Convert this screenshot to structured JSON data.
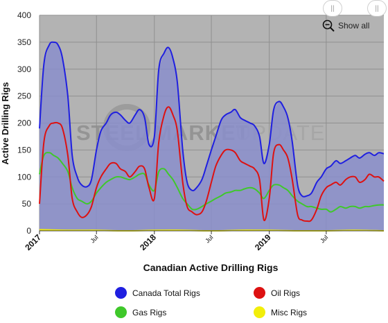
{
  "chart_data": {
    "type": "area",
    "title": "",
    "xlabel": "Canadian Active Drilling Rigs",
    "ylabel": "Active Drilling Rigs",
    "ylim": [
      0,
      400
    ],
    "yticks": [
      0,
      50,
      100,
      150,
      200,
      250,
      300,
      350,
      400
    ],
    "xlim": [
      "2017-01-01",
      "2019-12-31"
    ],
    "xticks": [
      {
        "date": "2017-01-01",
        "label": "2017",
        "major": true
      },
      {
        "date": "2017-07-01",
        "label": "Jul",
        "major": false
      },
      {
        "date": "2018-01-01",
        "label": "2018",
        "major": true
      },
      {
        "date": "2018-07-01",
        "label": "Jul",
        "major": false
      },
      {
        "date": "2019-01-01",
        "label": "2019",
        "major": true
      },
      {
        "date": "2019-07-01",
        "label": "Jul",
        "major": false
      }
    ],
    "grid": true,
    "legend_position": "bottom",
    "watermark": "STEEL MARKET UPDATE",
    "series": [
      {
        "name": "Canada Total Rigs",
        "color": "#1f1fe0",
        "fill": "#8a8ecb",
        "points": [
          [
            "2017-01-01",
            190
          ],
          [
            "2017-01-15",
            310
          ],
          [
            "2017-02-01",
            345
          ],
          [
            "2017-02-15",
            350
          ],
          [
            "2017-03-01",
            345
          ],
          [
            "2017-03-15",
            320
          ],
          [
            "2017-04-01",
            250
          ],
          [
            "2017-04-15",
            140
          ],
          [
            "2017-05-01",
            100
          ],
          [
            "2017-05-15",
            85
          ],
          [
            "2017-06-01",
            82
          ],
          [
            "2017-06-15",
            95
          ],
          [
            "2017-07-01",
            150
          ],
          [
            "2017-07-15",
            185
          ],
          [
            "2017-08-01",
            200
          ],
          [
            "2017-08-15",
            215
          ],
          [
            "2017-09-01",
            220
          ],
          [
            "2017-09-15",
            215
          ],
          [
            "2017-10-01",
            205
          ],
          [
            "2017-10-15",
            200
          ],
          [
            "2017-11-01",
            215
          ],
          [
            "2017-11-15",
            225
          ],
          [
            "2017-12-01",
            210
          ],
          [
            "2017-12-15",
            160
          ],
          [
            "2018-01-01",
            175
          ],
          [
            "2018-01-15",
            300
          ],
          [
            "2018-02-01",
            330
          ],
          [
            "2018-02-15",
            340
          ],
          [
            "2018-03-01",
            320
          ],
          [
            "2018-03-15",
            275
          ],
          [
            "2018-04-01",
            150
          ],
          [
            "2018-04-15",
            90
          ],
          [
            "2018-05-01",
            75
          ],
          [
            "2018-05-15",
            80
          ],
          [
            "2018-06-01",
            95
          ],
          [
            "2018-06-15",
            120
          ],
          [
            "2018-07-01",
            150
          ],
          [
            "2018-07-15",
            175
          ],
          [
            "2018-08-01",
            205
          ],
          [
            "2018-08-15",
            215
          ],
          [
            "2018-09-01",
            220
          ],
          [
            "2018-09-15",
            225
          ],
          [
            "2018-10-01",
            210
          ],
          [
            "2018-10-15",
            205
          ],
          [
            "2018-11-01",
            200
          ],
          [
            "2018-11-15",
            195
          ],
          [
            "2018-12-01",
            175
          ],
          [
            "2018-12-15",
            125
          ],
          [
            "2019-01-01",
            160
          ],
          [
            "2019-01-15",
            225
          ],
          [
            "2019-02-01",
            240
          ],
          [
            "2019-02-15",
            230
          ],
          [
            "2019-03-01",
            210
          ],
          [
            "2019-03-15",
            165
          ],
          [
            "2019-04-01",
            85
          ],
          [
            "2019-04-15",
            65
          ],
          [
            "2019-05-01",
            65
          ],
          [
            "2019-05-15",
            70
          ],
          [
            "2019-06-01",
            90
          ],
          [
            "2019-06-15",
            100
          ],
          [
            "2019-07-01",
            115
          ],
          [
            "2019-07-15",
            120
          ],
          [
            "2019-08-01",
            130
          ],
          [
            "2019-08-15",
            125
          ],
          [
            "2019-09-01",
            130
          ],
          [
            "2019-09-15",
            135
          ],
          [
            "2019-10-01",
            140
          ],
          [
            "2019-10-15",
            135
          ],
          [
            "2019-11-01",
            142
          ],
          [
            "2019-11-15",
            145
          ],
          [
            "2019-12-01",
            140
          ],
          [
            "2019-12-15",
            145
          ],
          [
            "2019-12-31",
            143
          ]
        ]
      },
      {
        "name": "Oil Rigs",
        "color": "#dd1111",
        "points": [
          [
            "2017-01-01",
            50
          ],
          [
            "2017-01-15",
            165
          ],
          [
            "2017-02-01",
            195
          ],
          [
            "2017-02-15",
            200
          ],
          [
            "2017-03-01",
            200
          ],
          [
            "2017-03-15",
            190
          ],
          [
            "2017-04-01",
            140
          ],
          [
            "2017-04-15",
            60
          ],
          [
            "2017-05-01",
            35
          ],
          [
            "2017-05-15",
            25
          ],
          [
            "2017-06-01",
            30
          ],
          [
            "2017-06-15",
            45
          ],
          [
            "2017-07-01",
            80
          ],
          [
            "2017-07-15",
            100
          ],
          [
            "2017-08-01",
            115
          ],
          [
            "2017-08-15",
            125
          ],
          [
            "2017-09-01",
            125
          ],
          [
            "2017-09-15",
            115
          ],
          [
            "2017-10-01",
            110
          ],
          [
            "2017-10-15",
            100
          ],
          [
            "2017-11-01",
            110
          ],
          [
            "2017-11-15",
            120
          ],
          [
            "2017-12-01",
            115
          ],
          [
            "2017-12-15",
            80
          ],
          [
            "2018-01-01",
            60
          ],
          [
            "2018-01-15",
            165
          ],
          [
            "2018-02-01",
            215
          ],
          [
            "2018-02-15",
            230
          ],
          [
            "2018-03-01",
            215
          ],
          [
            "2018-03-15",
            185
          ],
          [
            "2018-04-01",
            90
          ],
          [
            "2018-04-15",
            45
          ],
          [
            "2018-05-01",
            35
          ],
          [
            "2018-05-15",
            30
          ],
          [
            "2018-06-01",
            35
          ],
          [
            "2018-06-15",
            55
          ],
          [
            "2018-07-01",
            90
          ],
          [
            "2018-07-15",
            120
          ],
          [
            "2018-08-01",
            140
          ],
          [
            "2018-08-15",
            150
          ],
          [
            "2018-09-01",
            150
          ],
          [
            "2018-09-15",
            145
          ],
          [
            "2018-10-01",
            130
          ],
          [
            "2018-10-15",
            125
          ],
          [
            "2018-11-01",
            120
          ],
          [
            "2018-11-15",
            115
          ],
          [
            "2018-12-01",
            95
          ],
          [
            "2018-12-15",
            20
          ],
          [
            "2019-01-01",
            60
          ],
          [
            "2019-01-15",
            145
          ],
          [
            "2019-02-01",
            160
          ],
          [
            "2019-02-15",
            150
          ],
          [
            "2019-03-01",
            135
          ],
          [
            "2019-03-15",
            95
          ],
          [
            "2019-04-01",
            30
          ],
          [
            "2019-04-15",
            20
          ],
          [
            "2019-05-01",
            18
          ],
          [
            "2019-05-15",
            20
          ],
          [
            "2019-06-01",
            40
          ],
          [
            "2019-06-15",
            65
          ],
          [
            "2019-07-01",
            80
          ],
          [
            "2019-07-15",
            85
          ],
          [
            "2019-08-01",
            90
          ],
          [
            "2019-08-15",
            85
          ],
          [
            "2019-09-01",
            95
          ],
          [
            "2019-09-15",
            100
          ],
          [
            "2019-10-01",
            100
          ],
          [
            "2019-10-15",
            90
          ],
          [
            "2019-11-01",
            95
          ],
          [
            "2019-11-15",
            105
          ],
          [
            "2019-12-01",
            100
          ],
          [
            "2019-12-15",
            100
          ],
          [
            "2019-12-31",
            92
          ]
        ]
      },
      {
        "name": "Gas Rigs",
        "color": "#3fc82a",
        "points": [
          [
            "2017-01-01",
            105
          ],
          [
            "2017-01-15",
            140
          ],
          [
            "2017-02-01",
            145
          ],
          [
            "2017-02-15",
            140
          ],
          [
            "2017-03-01",
            135
          ],
          [
            "2017-03-15",
            125
          ],
          [
            "2017-04-01",
            110
          ],
          [
            "2017-04-15",
            80
          ],
          [
            "2017-05-01",
            60
          ],
          [
            "2017-05-15",
            55
          ],
          [
            "2017-06-01",
            50
          ],
          [
            "2017-06-15",
            55
          ],
          [
            "2017-07-01",
            70
          ],
          [
            "2017-07-15",
            80
          ],
          [
            "2017-08-01",
            90
          ],
          [
            "2017-08-15",
            95
          ],
          [
            "2017-09-01",
            100
          ],
          [
            "2017-09-15",
            100
          ],
          [
            "2017-10-01",
            97
          ],
          [
            "2017-10-15",
            95
          ],
          [
            "2017-11-01",
            100
          ],
          [
            "2017-11-15",
            105
          ],
          [
            "2017-12-01",
            105
          ],
          [
            "2017-12-15",
            85
          ],
          [
            "2018-01-01",
            75
          ],
          [
            "2018-01-15",
            110
          ],
          [
            "2018-02-01",
            115
          ],
          [
            "2018-02-15",
            105
          ],
          [
            "2018-03-01",
            95
          ],
          [
            "2018-03-15",
            80
          ],
          [
            "2018-04-01",
            60
          ],
          [
            "2018-04-15",
            50
          ],
          [
            "2018-05-01",
            40
          ],
          [
            "2018-05-15",
            40
          ],
          [
            "2018-06-01",
            45
          ],
          [
            "2018-06-15",
            50
          ],
          [
            "2018-07-01",
            55
          ],
          [
            "2018-07-15",
            60
          ],
          [
            "2018-08-01",
            65
          ],
          [
            "2018-08-15",
            70
          ],
          [
            "2018-09-01",
            72
          ],
          [
            "2018-09-15",
            75
          ],
          [
            "2018-10-01",
            75
          ],
          [
            "2018-10-15",
            78
          ],
          [
            "2018-11-01",
            80
          ],
          [
            "2018-11-15",
            78
          ],
          [
            "2018-12-01",
            70
          ],
          [
            "2018-12-15",
            60
          ],
          [
            "2019-01-01",
            75
          ],
          [
            "2019-01-15",
            85
          ],
          [
            "2019-02-01",
            85
          ],
          [
            "2019-02-15",
            80
          ],
          [
            "2019-03-01",
            75
          ],
          [
            "2019-03-15",
            65
          ],
          [
            "2019-04-01",
            55
          ],
          [
            "2019-04-15",
            50
          ],
          [
            "2019-05-01",
            45
          ],
          [
            "2019-05-15",
            45
          ],
          [
            "2019-06-01",
            42
          ],
          [
            "2019-06-15",
            40
          ],
          [
            "2019-07-01",
            40
          ],
          [
            "2019-07-15",
            35
          ],
          [
            "2019-08-01",
            40
          ],
          [
            "2019-08-15",
            45
          ],
          [
            "2019-09-01",
            42
          ],
          [
            "2019-09-15",
            45
          ],
          [
            "2019-10-01",
            45
          ],
          [
            "2019-10-15",
            42
          ],
          [
            "2019-11-01",
            45
          ],
          [
            "2019-11-15",
            45
          ],
          [
            "2019-12-01",
            47
          ],
          [
            "2019-12-15",
            48
          ],
          [
            "2019-12-31",
            48
          ]
        ]
      },
      {
        "name": "Misc Rigs",
        "color": "#f2ee0a",
        "points": [
          [
            "2017-01-01",
            2
          ],
          [
            "2017-04-01",
            1
          ],
          [
            "2017-07-01",
            1
          ],
          [
            "2017-10-01",
            0
          ],
          [
            "2018-01-01",
            1
          ],
          [
            "2018-04-01",
            1
          ],
          [
            "2018-07-01",
            0
          ],
          [
            "2018-10-01",
            1
          ],
          [
            "2019-01-01",
            1
          ],
          [
            "2019-04-01",
            0
          ],
          [
            "2019-07-01",
            0
          ],
          [
            "2019-10-01",
            1
          ],
          [
            "2019-12-31",
            0
          ]
        ]
      }
    ]
  },
  "controls": {
    "show_all_label": "Show all",
    "scroll_handle_left_glyph": "||",
    "scroll_handle_right_glyph": "||"
  },
  "colors": {
    "plot_background": "#b3b3b3",
    "grid": "#8f8f8f"
  }
}
